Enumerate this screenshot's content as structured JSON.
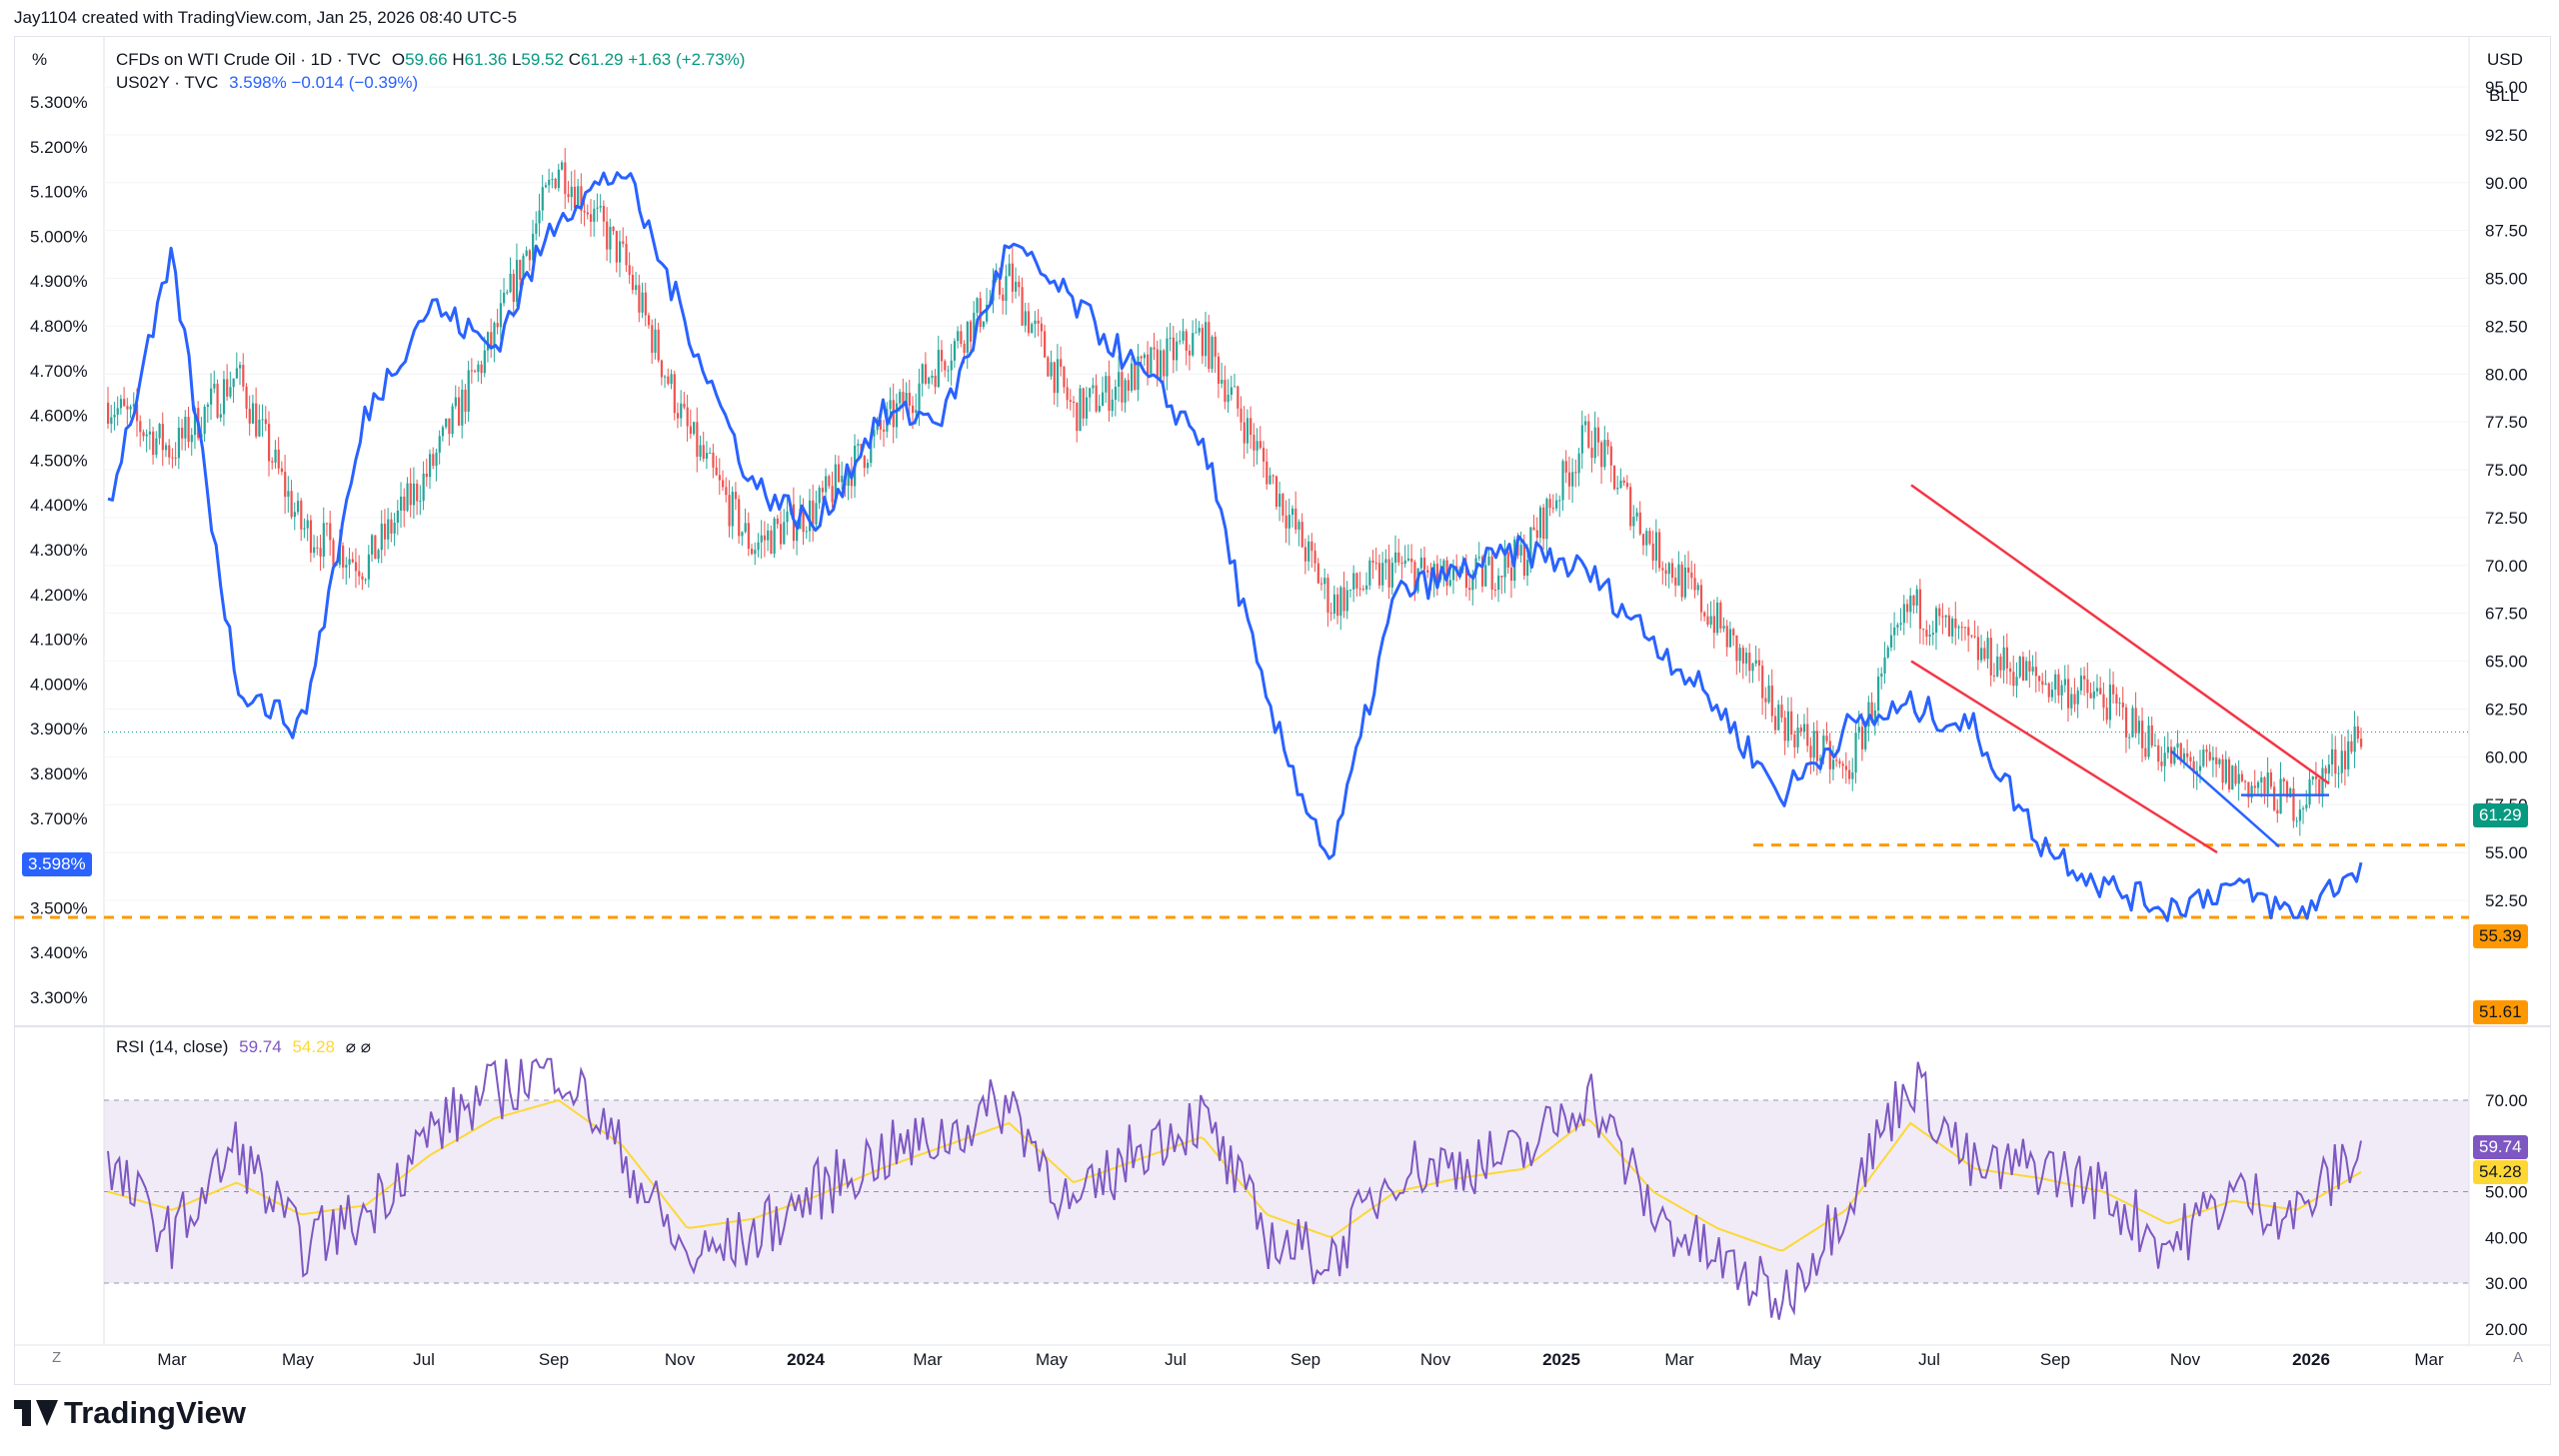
{
  "header": {
    "credit": "Jay1104 created with TradingView.com, Jan 25, 2026 08:40 UTC-5"
  },
  "left_axis": {
    "unit": "%",
    "ticks": [
      "5.300%",
      "5.200%",
      "5.100%",
      "5.000%",
      "4.900%",
      "4.800%",
      "4.700%",
      "4.600%",
      "4.500%",
      "4.400%",
      "4.300%",
      "4.200%",
      "4.100%",
      "4.000%",
      "3.900%",
      "3.800%",
      "3.700%",
      "3.600%",
      "3.500%",
      "3.400%",
      "3.300%"
    ],
    "current": "3.598%"
  },
  "right_axis": {
    "currency": "USD",
    "unit": "BLL",
    "ticks": [
      "95.00",
      "92.50",
      "90.00",
      "87.50",
      "85.00",
      "82.50",
      "80.00",
      "77.50",
      "75.00",
      "72.50",
      "70.00",
      "67.50",
      "65.00",
      "62.50",
      "60.00",
      "57.50",
      "55.00",
      "52.50"
    ],
    "current_price": "61.29",
    "level_1": "55.39",
    "level_2": "51.61"
  },
  "legend": {
    "symbol": "CFDs on WTI Crude Oil · 1D · TVC",
    "o_label": "O",
    "o_value": "59.66",
    "h_label": "H",
    "h_value": "61.36",
    "l_label": "L",
    "l_value": "59.52",
    "c_label": "C",
    "c_value": "61.29",
    "change": "+1.63 (+2.73%)",
    "symbol2": "US02Y · TVC",
    "value2": "3.598%",
    "change2": "−0.014 (−0.39%)"
  },
  "rsi": {
    "label": "RSI (14, close)",
    "value": "59.74",
    "ma_value": "54.28",
    "icons": "⌀ ⌀",
    "ticks": [
      "70.00",
      "60.00",
      "50.00",
      "40.00",
      "30.00",
      "20.00"
    ]
  },
  "time_axis": {
    "ticks": [
      "Mar",
      "May",
      "Jul",
      "Sep",
      "Nov",
      "2024",
      "Mar",
      "May",
      "Jul",
      "Sep",
      "Nov",
      "2025",
      "Mar",
      "May",
      "Jul",
      "Sep",
      "Nov",
      "2026",
      "Mar"
    ],
    "bold": [
      "2024",
      "2025",
      "2026"
    ],
    "left_btn": "Z",
    "right_btn": "A"
  },
  "brand": "TradingView",
  "colors": {
    "up": "#26a69a",
    "down": "#ef5350",
    "yield_line": "#2962ff",
    "trendline": "#f23645",
    "level": "#ff9800",
    "rsi": "#7e57c2",
    "rsi_ma": "#fdd835",
    "rsi_band": "#ede7f6"
  },
  "chart_data": [
    {
      "type": "line",
      "title": "CFDs on WTI Crude Oil · 1D · TVC",
      "ylabel": "USD",
      "x": [
        "2023-02",
        "2023-03",
        "2023-04",
        "2023-05",
        "2023-06",
        "2023-07",
        "2023-08",
        "2023-09",
        "2023-10",
        "2023-11",
        "2023-12",
        "2024-01",
        "2024-02",
        "2024-03",
        "2024-04",
        "2024-05",
        "2024-06",
        "2024-07",
        "2024-08",
        "2024-09",
        "2024-10",
        "2024-11",
        "2024-12",
        "2025-01",
        "2025-02",
        "2025-03",
        "2025-04",
        "2025-05",
        "2025-06",
        "2025-07",
        "2025-08",
        "2025-09",
        "2025-10",
        "2025-11",
        "2025-12",
        "2026-01"
      ],
      "series": [
        {
          "name": "CFDs on WTI Crude Oil",
          "values": [
            78.5,
            76.0,
            80.0,
            72.0,
            70.0,
            75.0,
            82.0,
            91.0,
            86.0,
            77.0,
            71.0,
            73.0,
            77.0,
            81.0,
            85.0,
            78.0,
            80.0,
            82.0,
            75.0,
            68.0,
            70.0,
            69.0,
            70.5,
            77.0,
            71.0,
            67.0,
            62.0,
            59.0,
            68.0,
            65.5,
            64.0,
            63.0,
            60.0,
            59.0,
            57.5,
            61.29
          ]
        },
        {
          "name": "US02Y",
          "values": [
            4.4,
            4.95,
            4.0,
            3.9,
            4.6,
            4.85,
            4.75,
            5.05,
            5.15,
            4.8,
            4.45,
            4.35,
            4.6,
            4.6,
            4.98,
            4.85,
            4.7,
            4.55,
            3.95,
            3.6,
            4.2,
            4.25,
            4.3,
            4.25,
            4.1,
            3.95,
            3.75,
            3.9,
            3.95,
            3.9,
            3.65,
            3.55,
            3.5,
            3.55,
            3.48,
            3.598
          ]
        }
      ],
      "y2lim": [
        3.26,
        5.36
      ],
      "ylim": [
        50.0,
        97.0
      ],
      "levels": [
        55.39,
        51.61
      ]
    },
    {
      "type": "line",
      "title": "RSI (14, close)",
      "ylim": [
        17,
        80
      ],
      "series": [
        {
          "name": "RSI",
          "values": [
            55,
            40,
            60,
            38,
            45,
            63,
            72,
            78,
            58,
            35,
            40,
            50,
            58,
            62,
            70,
            45,
            60,
            66,
            40,
            35,
            55,
            56,
            58,
            72,
            45,
            35,
            26,
            48,
            75,
            54,
            56,
            50,
            38,
            50,
            45,
            59.74
          ]
        },
        {
          "name": "RSI MA",
          "values": [
            50,
            46,
            52,
            45,
            47,
            58,
            66,
            70,
            60,
            42,
            44,
            49,
            55,
            60,
            65,
            52,
            57,
            62,
            45,
            40,
            50,
            53,
            55,
            66,
            50,
            42,
            37,
            46,
            65,
            55,
            53,
            50,
            43,
            48,
            46,
            54.28
          ]
        }
      ]
    }
  ]
}
